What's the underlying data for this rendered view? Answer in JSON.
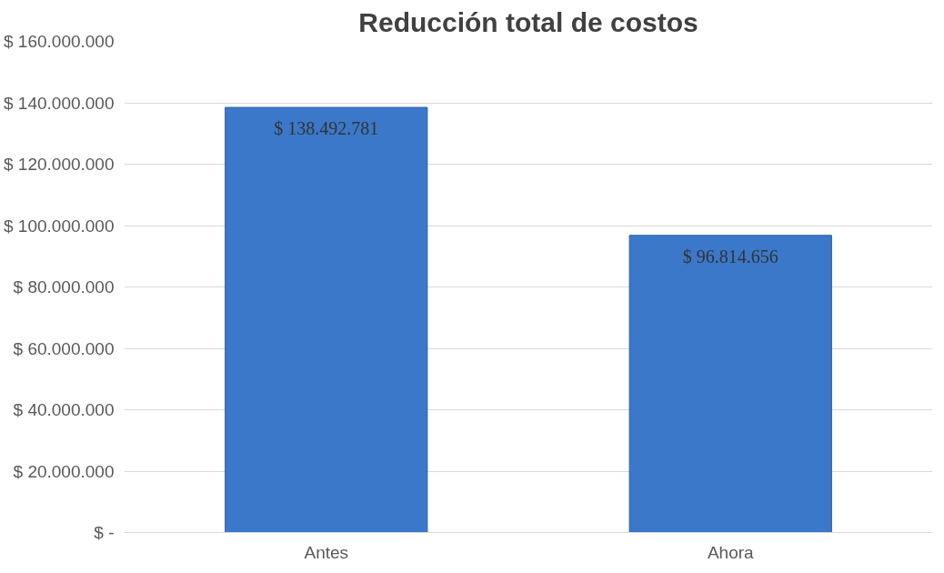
{
  "chart_data": {
    "type": "bar",
    "title": "Reducción total de costos",
    "categories": [
      "Antes",
      "Ahora"
    ],
    "values": [
      138492781,
      96814656
    ],
    "value_labels": [
      "$ 138.492.781",
      "$ 96.814.656"
    ],
    "color": "#3b78c9",
    "ylim": [
      0,
      160000000
    ],
    "yticks": [
      {
        "value": 0,
        "label": "$ -"
      },
      {
        "value": 20000000,
        "label": "$ 20.000.000"
      },
      {
        "value": 40000000,
        "label": "$ 40.000.000"
      },
      {
        "value": 60000000,
        "label": "$ 60.000.000"
      },
      {
        "value": 80000000,
        "label": "$ 80.000.000"
      },
      {
        "value": 100000000,
        "label": "$ 100.000.000"
      },
      {
        "value": 120000000,
        "label": "$ 120.000.000"
      },
      {
        "value": 140000000,
        "label": "$ 140.000.000"
      },
      {
        "value": 160000000,
        "label": "$ 160.000.000"
      }
    ],
    "grid": "y"
  }
}
